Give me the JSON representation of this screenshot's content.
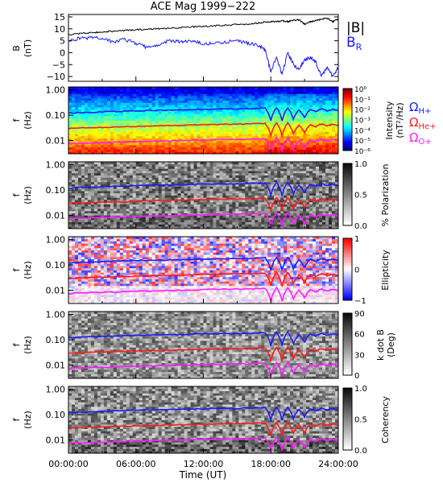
{
  "title": "ACE Mag 1999−222",
  "xlabel": "Time (UT)",
  "xticks": [
    "00:00:00",
    "06:00:00",
    "12:00:00",
    "18:00:00",
    "24:00:00"
  ],
  "freq_ticks": [
    "1.00",
    "0.10",
    "0.01"
  ],
  "freq_axis_label": "f",
  "freq_axis_unit": "(Hz)",
  "colors": {
    "B_total": "#000000",
    "B_R": "#1a1aff",
    "omega_H": "#1a1aff",
    "omega_He": "#ff1a1a",
    "omega_O": "#ff1aff"
  },
  "legend_B": {
    "total": "|B|",
    "r_main": "B",
    "r_sub": "R"
  },
  "legend_omega": [
    {
      "main": "Ω",
      "sub": "H+",
      "color": "#1a1aff"
    },
    {
      "main": "Ω",
      "sub": "He+",
      "color": "#ff1a1a"
    },
    {
      "main": "Ω",
      "sub": "O+",
      "color": "#ff1aff"
    }
  ],
  "panels": [
    {
      "ylabel": "B",
      "yunit": "(nT)",
      "yticks": [
        "15",
        "10",
        "5",
        "0",
        "−5",
        "−10"
      ]
    },
    {
      "cbar_label_1": "Intensity",
      "cbar_label_2": "(nT²/Hz)",
      "cbar_ticks": [
        "10⁰",
        "10⁻¹",
        "10⁻²",
        "10⁻³",
        "10⁻⁴",
        "10⁻⁵",
        "10⁻⁶"
      ]
    },
    {
      "cbar_label_1": "% Polarization",
      "cbar_label_2": "",
      "cbar_ticks": [
        "1.0",
        "0.5",
        "0.0"
      ]
    },
    {
      "cbar_label_1": "Ellipticity",
      "cbar_label_2": "",
      "cbar_ticks": [
        "1",
        "0",
        "−1"
      ]
    },
    {
      "cbar_label_1": "k dot B",
      "cbar_label_2": "(Deg)",
      "cbar_ticks": [
        "90",
        "60",
        "30",
        "0"
      ]
    },
    {
      "cbar_label_1": "Coherency",
      "cbar_label_2": "",
      "cbar_ticks": [
        "1.0",
        "0.5",
        "0.0"
      ]
    }
  ],
  "chart_data": [
    {
      "type": "line",
      "title": "ACE Mag 1999−222",
      "xlabel": "Time (UT)",
      "ylabel": "B (nT)",
      "xlim": [
        0,
        24
      ],
      "ylim": [
        -12,
        16
      ],
      "series": [
        {
          "name": "|B|",
          "x": [
            0,
            1,
            2,
            3,
            4,
            5,
            6,
            7,
            8,
            9,
            10,
            11,
            12,
            13,
            14,
            15,
            16,
            17,
            17.5,
            18,
            18.5,
            19,
            19.5,
            20,
            20.5,
            21,
            21.5,
            22,
            22.5,
            23,
            23.5,
            24
          ],
          "values": [
            7.5,
            8,
            8.3,
            8.7,
            9,
            9.3,
            9.6,
            9.8,
            10,
            10.3,
            10.5,
            10.8,
            11,
            11.3,
            11.5,
            11.8,
            12,
            12.5,
            12.8,
            13,
            13,
            13.3,
            13,
            13.5,
            13.8,
            12,
            12.8,
            13.5,
            14,
            14.5,
            13,
            14
          ]
        },
        {
          "name": "B",
          "x": [
            0,
            1,
            2,
            3,
            4,
            5,
            6,
            7,
            8,
            9,
            10,
            11,
            12,
            13,
            14,
            15,
            16,
            17,
            17.5,
            18,
            18.5,
            19,
            19.5,
            20,
            20.5,
            21,
            21.5,
            22,
            22.5,
            23,
            23.5,
            24
          ],
          "values": [
            5,
            6,
            6.3,
            6,
            4.5,
            5.5,
            4,
            2,
            3.5,
            5,
            4.5,
            5,
            3.5,
            4,
            4.5,
            5,
            4,
            3,
            1,
            -8,
            -2,
            -9,
            0,
            -5,
            -7,
            -3,
            -2,
            -4,
            -10,
            -6,
            -10,
            -6
          ]
        }
      ]
    },
    {
      "type": "heatmap",
      "quantity": "Intensity",
      "unit": "nT²/Hz",
      "xlabel": "Time (UT)",
      "ylabel": "f (Hz)",
      "xlim": [
        0,
        24
      ],
      "ylim": [
        0.003,
        1.3
      ],
      "yscale": "log",
      "clim": [
        1e-06,
        1
      ]
    },
    {
      "type": "heatmap",
      "quantity": "% Polarization",
      "xlabel": "Time (UT)",
      "ylabel": "f (Hz)",
      "xlim": [
        0,
        24
      ],
      "ylim": [
        0.003,
        1.3
      ],
      "yscale": "log",
      "clim": [
        0,
        1
      ]
    },
    {
      "type": "heatmap",
      "quantity": "Ellipticity",
      "xlabel": "Time (UT)",
      "ylabel": "f (Hz)",
      "xlim": [
        0,
        24
      ],
      "ylim": [
        0.003,
        1.3
      ],
      "yscale": "log",
      "clim": [
        -1,
        1
      ]
    },
    {
      "type": "heatmap",
      "quantity": "k dot B",
      "unit": "Deg",
      "xlabel": "Time (UT)",
      "ylabel": "f (Hz)",
      "xlim": [
        0,
        24
      ],
      "ylim": [
        0.003,
        1.3
      ],
      "yscale": "log",
      "clim": [
        0,
        90
      ]
    },
    {
      "type": "heatmap",
      "quantity": "Coherency",
      "xlabel": "Time (UT)",
      "ylabel": "f (Hz)",
      "xlim": [
        0,
        24
      ],
      "ylim": [
        0.003,
        1.3
      ],
      "yscale": "log",
      "clim": [
        0,
        1
      ]
    },
    {
      "type": "line",
      "note": "gyrofrequency curves overlaid on every spectrogram panel",
      "xlim": [
        0,
        24
      ],
      "series": [
        {
          "name": "ΩH+",
          "x": [
            0,
            2,
            4,
            6,
            8,
            10,
            12,
            14,
            16,
            17.5,
            18,
            18.5,
            19,
            19.5,
            20,
            20.5,
            21,
            21.5,
            22,
            22.5,
            23,
            23.5,
            24
          ],
          "values": [
            0.12,
            0.13,
            0.14,
            0.15,
            0.155,
            0.16,
            0.17,
            0.175,
            0.18,
            0.19,
            0.06,
            0.2,
            0.06,
            0.2,
            0.07,
            0.16,
            0.08,
            0.17,
            0.14,
            0.18,
            0.15,
            0.17,
            0.15
          ]
        },
        {
          "name": "ΩHe+",
          "x": [
            0,
            2,
            4,
            6,
            8,
            10,
            12,
            14,
            16,
            17.5,
            18,
            18.5,
            19,
            19.5,
            20,
            20.5,
            21,
            21.5,
            22,
            22.5,
            23,
            23.5,
            24
          ],
          "values": [
            0.03,
            0.032,
            0.034,
            0.036,
            0.038,
            0.04,
            0.042,
            0.044,
            0.045,
            0.047,
            0.015,
            0.05,
            0.015,
            0.05,
            0.018,
            0.04,
            0.02,
            0.042,
            0.035,
            0.045,
            0.038,
            0.043,
            0.038
          ]
        },
        {
          "name": "ΩO+",
          "x": [
            0,
            2,
            4,
            6,
            8,
            10,
            12,
            14,
            16,
            17.5,
            18,
            18.5,
            19,
            19.5,
            20,
            20.5,
            21,
            21.5,
            22,
            22.5,
            23,
            23.5,
            24
          ],
          "values": [
            0.0075,
            0.008,
            0.0085,
            0.009,
            0.0095,
            0.01,
            0.0105,
            0.011,
            0.0112,
            0.0118,
            0.0038,
            0.0125,
            0.0038,
            0.0125,
            0.0045,
            0.01,
            0.005,
            0.0105,
            0.0088,
            0.0112,
            0.0095,
            0.0108,
            0.0095
          ]
        }
      ]
    }
  ]
}
